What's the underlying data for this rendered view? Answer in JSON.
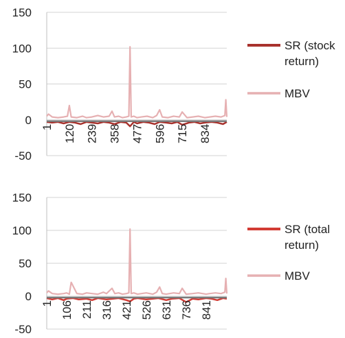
{
  "chart_data": [
    {
      "type": "line",
      "ylim": [
        -50,
        150
      ],
      "y_ticks": [
        "150",
        "100",
        "50",
        "0",
        "-50"
      ],
      "x_ticks": [
        "1",
        "120",
        "239",
        "358",
        "477",
        "596",
        "715",
        "834"
      ],
      "x_range": [
        1,
        950
      ],
      "grid": true,
      "legend_position": "right",
      "series": [
        {
          "name_lines": [
            "SR (stock",
            "return)"
          ],
          "color": "#A8322D",
          "x": [
            1,
            30,
            60,
            90,
            120,
            150,
            180,
            210,
            239,
            270,
            300,
            330,
            358,
            390,
            420,
            440,
            460,
            477,
            510,
            540,
            570,
            596,
            630,
            660,
            690,
            715,
            750,
            780,
            810,
            834,
            870,
            900,
            930,
            950
          ],
          "y": [
            -3,
            -4,
            -3,
            -5,
            -3,
            -4,
            -6,
            -3,
            -4,
            -5,
            -3,
            -4,
            -6,
            -3,
            -4,
            -9,
            -3,
            -5,
            -3,
            -4,
            -6,
            -3,
            -4,
            -5,
            -3,
            -7,
            -4,
            -3,
            -5,
            -4,
            -3,
            -4,
            -6,
            -3
          ]
        },
        {
          "name_lines": [
            "MBV"
          ],
          "color": "#E6B0B2",
          "x": [
            1,
            10,
            30,
            60,
            90,
            110,
            120,
            130,
            160,
            190,
            210,
            239,
            270,
            300,
            330,
            345,
            358,
            380,
            400,
            420,
            434,
            440,
            446,
            460,
            477,
            500,
            530,
            560,
            580,
            596,
            610,
            640,
            670,
            700,
            715,
            740,
            770,
            800,
            834,
            860,
            890,
            920,
            940,
            945,
            950
          ],
          "y": [
            5,
            8,
            4,
            3,
            4,
            5,
            20,
            4,
            3,
            5,
            3,
            4,
            6,
            4,
            5,
            12,
            4,
            5,
            3,
            4,
            5,
            102,
            4,
            5,
            3,
            4,
            5,
            3,
            6,
            14,
            4,
            3,
            5,
            4,
            11,
            3,
            4,
            5,
            3,
            4,
            5,
            4,
            6,
            28,
            4
          ]
        }
      ]
    },
    {
      "type": "line",
      "ylim": [
        -50,
        150
      ],
      "y_ticks": [
        "150",
        "100",
        "50",
        "0",
        "-50"
      ],
      "x_ticks": [
        "1",
        "106",
        "211",
        "316",
        "421",
        "526",
        "631",
        "736",
        "841"
      ],
      "x_range": [
        1,
        950
      ],
      "grid": true,
      "legend_position": "right",
      "series": [
        {
          "name_lines": [
            "SR (total",
            "return)"
          ],
          "color": "#D23B34",
          "x": [
            1,
            30,
            60,
            90,
            106,
            140,
            170,
            211,
            240,
            270,
            316,
            350,
            380,
            421,
            440,
            460,
            480,
            526,
            560,
            590,
            631,
            660,
            700,
            736,
            770,
            800,
            841,
            870,
            900,
            930,
            950
          ],
          "y": [
            -3,
            -5,
            -3,
            -6,
            -4,
            -3,
            -5,
            -4,
            -6,
            -3,
            -5,
            -4,
            -3,
            -6,
            -8,
            -4,
            -3,
            -5,
            -4,
            -3,
            -6,
            -4,
            -3,
            -9,
            -4,
            -5,
            -3,
            -4,
            -6,
            -3,
            -4
          ]
        },
        {
          "name_lines": [
            "MBV"
          ],
          "color": "#E6B0B2",
          "x": [
            1,
            10,
            30,
            60,
            90,
            106,
            120,
            130,
            160,
            190,
            211,
            240,
            270,
            300,
            316,
            345,
            360,
            380,
            400,
            421,
            434,
            440,
            446,
            460,
            480,
            500,
            526,
            560,
            580,
            596,
            610,
            631,
            670,
            700,
            715,
            736,
            770,
            800,
            841,
            860,
            890,
            920,
            940,
            945,
            950
          ],
          "y": [
            5,
            8,
            4,
            3,
            4,
            5,
            3,
            21,
            4,
            3,
            5,
            4,
            3,
            6,
            4,
            12,
            4,
            5,
            3,
            4,
            5,
            102,
            4,
            5,
            3,
            4,
            5,
            3,
            6,
            14,
            4,
            3,
            5,
            4,
            12,
            3,
            4,
            5,
            3,
            4,
            5,
            4,
            6,
            27,
            4
          ]
        }
      ]
    }
  ]
}
